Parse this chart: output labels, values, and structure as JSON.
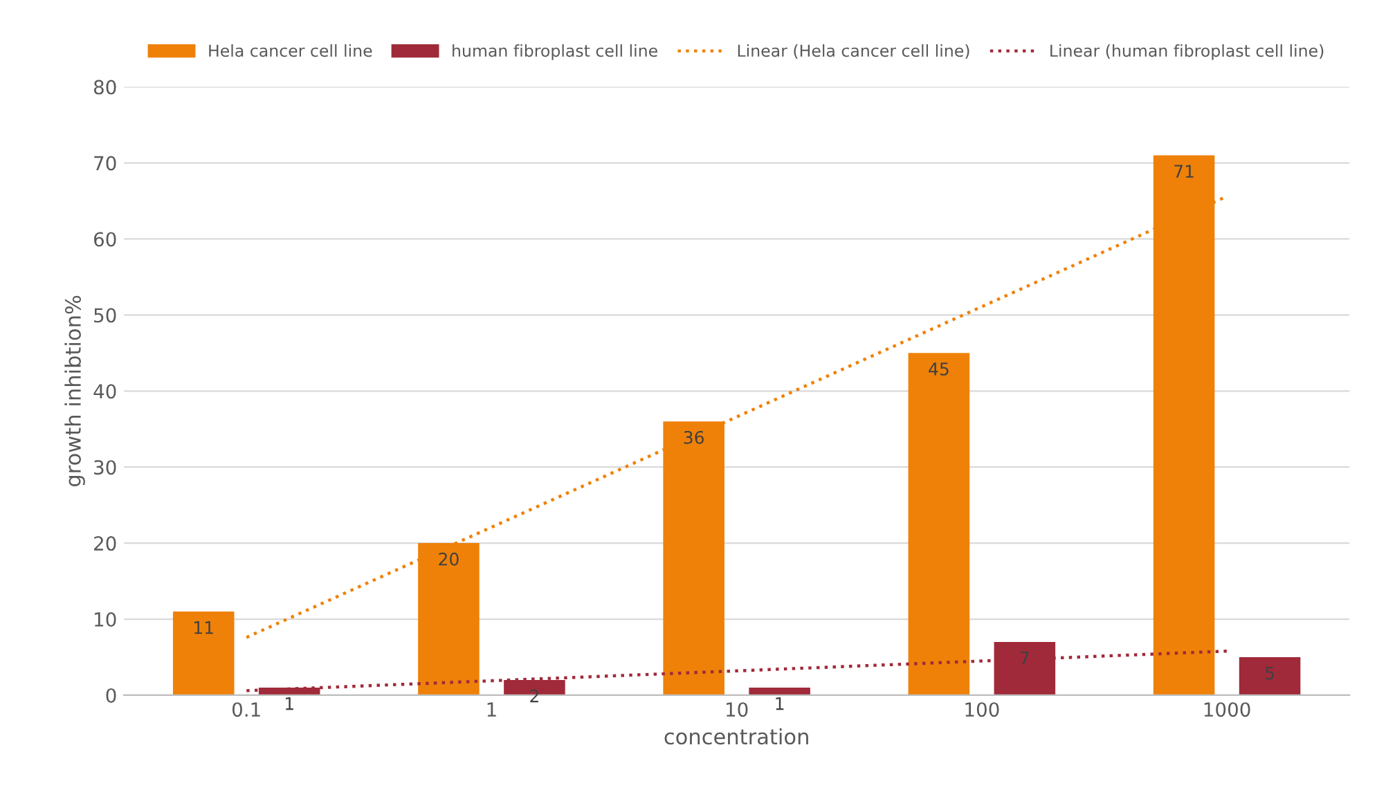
{
  "chart_data": {
    "type": "bar",
    "xlabel": "concentration",
    "ylabel": "growth inhibtion%",
    "categories": [
      "0.1",
      "1",
      "10",
      "100",
      "1000"
    ],
    "series": [
      {
        "name": "Hela cancer cell line",
        "color": "#ef8109",
        "values": [
          11,
          20,
          36,
          45,
          71
        ],
        "value_labels": [
          "11",
          "20",
          "36",
          "45",
          "71"
        ]
      },
      {
        "name": "human fibroplast cell line",
        "color": "#a02a3a",
        "values": [
          1,
          2,
          1,
          7,
          5
        ],
        "value_labels": [
          "1",
          "2",
          "1",
          "7",
          "5"
        ]
      },
      {
        "name": "Linear (Hela cancer cell line)",
        "type": "line",
        "line_style": "dotted",
        "color": "#ef8109",
        "values": [
          7.6,
          22.1,
          36.6,
          51.1,
          65.6
        ]
      },
      {
        "name": "Linear (human fibroplast cell line)",
        "type": "line",
        "line_style": "dotted",
        "color": "#a02a3a",
        "values": [
          0.6,
          1.9,
          3.2,
          4.5,
          5.8
        ]
      }
    ],
    "ylim": [
      0,
      80
    ],
    "yticks": [
      0,
      10,
      20,
      30,
      40,
      50,
      60,
      70,
      80
    ],
    "grid": "y",
    "legend": "top"
  }
}
